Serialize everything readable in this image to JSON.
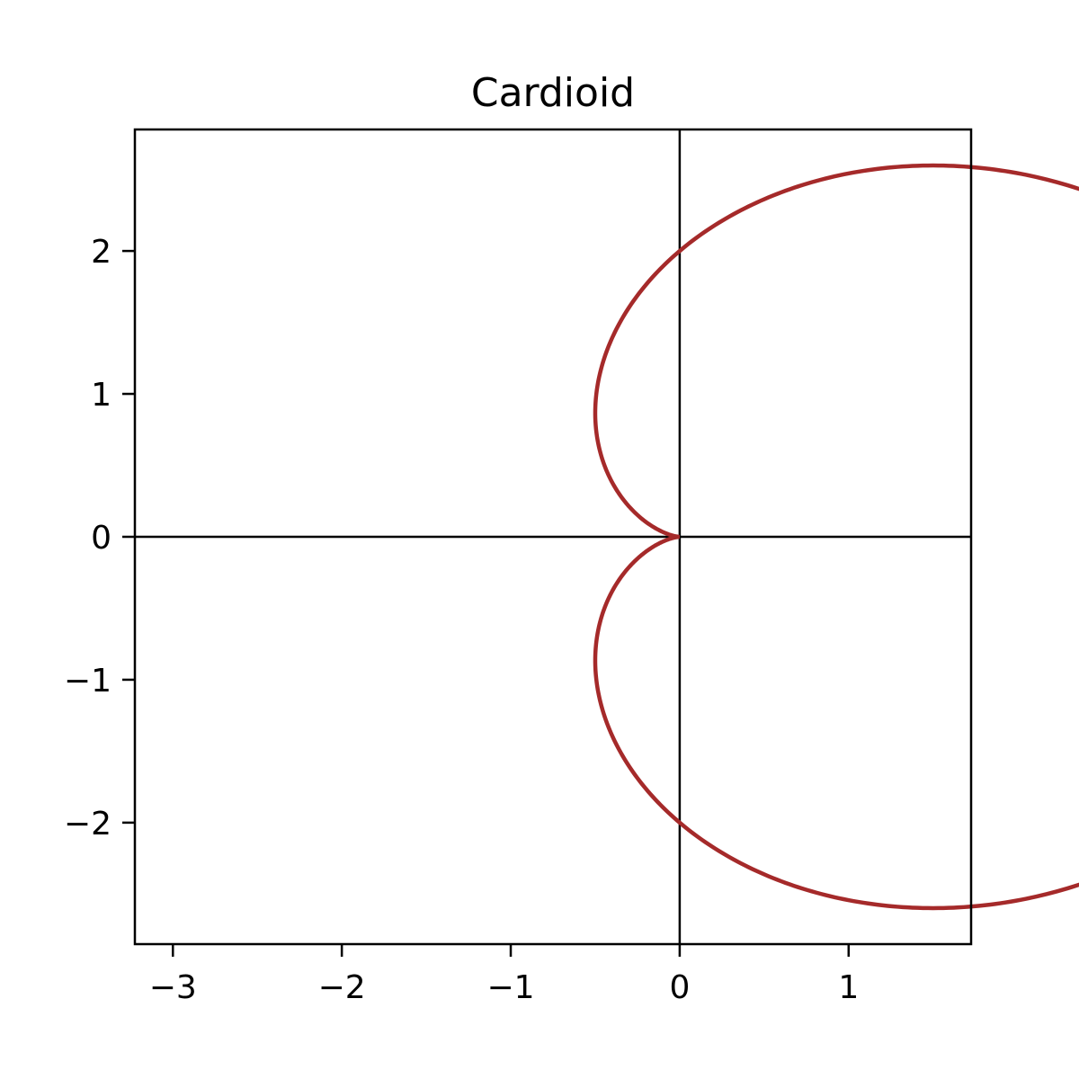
{
  "chart_data": {
    "type": "line",
    "title": "Cardioid",
    "xlabel": "",
    "ylabel": "",
    "curve": {
      "equation": "r = 2 - 2cos(theta)",
      "theta_range": [
        0,
        6.283185307179586
      ],
      "color": "#a52a2a"
    },
    "xlim": [
      -3.225,
      1.725
    ],
    "ylim": [
      -2.85,
      2.85
    ],
    "xticks": [
      -3,
      -2,
      -1,
      0,
      1
    ],
    "xtick_labels": [
      "−3",
      "−2",
      "−1",
      "0",
      "1"
    ],
    "yticks": [
      -2,
      -1,
      0,
      1,
      2
    ],
    "ytick_labels": [
      "−2",
      "−1",
      "0",
      "1",
      "2"
    ],
    "axis_lines": {
      "x": 0,
      "y": 0
    },
    "grid": false,
    "legend": "none"
  }
}
